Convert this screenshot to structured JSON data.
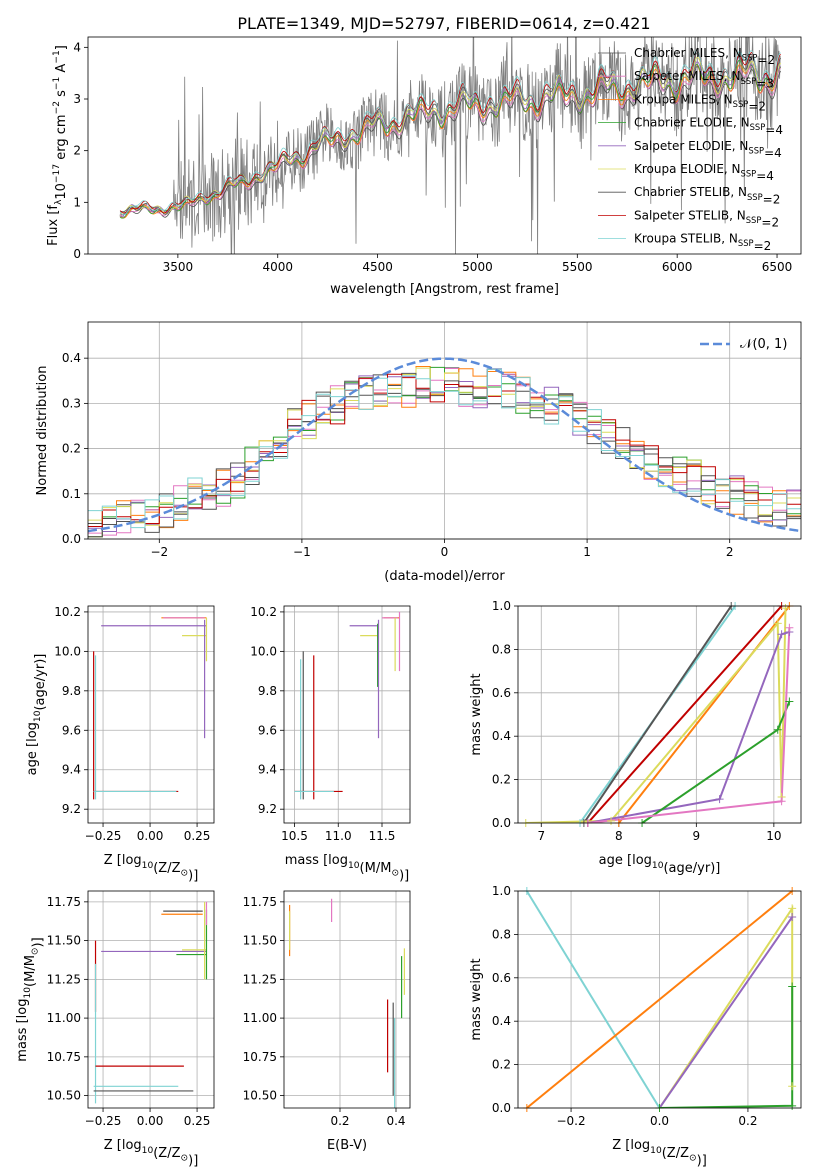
{
  "figure_title": "PLATE=1349, MJD=52797, FIBERID=0614, z=0.421",
  "series_colors": {
    "Chabrier MILES": "#4f4f4f",
    "Salpeter MILES": "#e377c2",
    "Kroupa MILES": "#ff7f0e",
    "Chabrier ELODIE": "#2ca02c",
    "Salpeter ELODIE": "#9467bd",
    "Kroupa ELODIE": "#dbdb5c",
    "Chabrier STELIB": "#555555",
    "Salpeter STELIB": "#c00000",
    "Kroupa STELIB": "#7fd3d3"
  },
  "chart_data": [
    {
      "type": "line",
      "id": "spectrum",
      "xlabel": "wavelength [Angstrom, rest frame]",
      "ylabel_main": "Flux [f",
      "ylabel_sub": "λ",
      "ylabel_rest": "10",
      "ylabel_exp": "−17",
      "ylabel_tail": " erg cm",
      "ylabel_exp2": "−2",
      "ylabel_tail2": " s",
      "ylabel_exp3": "−1",
      "ylabel_tail3": " A",
      "ylabel_exp4": "−1",
      "ylabel_end": "]",
      "xlim": [
        3050,
        6620
      ],
      "ylim": [
        0,
        4.2
      ],
      "xticks": [
        "3500",
        "4000",
        "4500",
        "5000",
        "5500",
        "6000",
        "6500"
      ],
      "xtick_values": [
        3500,
        4000,
        4500,
        5000,
        5500,
        6000,
        6500
      ],
      "yticks": [
        "0",
        "1",
        "2",
        "3",
        "4"
      ],
      "ytick_values": [
        0,
        1,
        2,
        3,
        4
      ],
      "data_start": 3210,
      "data_end": 6520,
      "model_anchor_x": [
        3210,
        3260,
        3500,
        3600,
        3800,
        4000,
        4200,
        4500,
        4800,
        5000,
        5500,
        6000,
        6500
      ],
      "model_anchor_y": [
        0.8,
        0.85,
        0.9,
        1.05,
        1.35,
        1.7,
        2.1,
        2.5,
        2.8,
        2.9,
        3.1,
        3.4,
        3.5
      ],
      "legend": [
        {
          "label": "Chabrier MILES, N",
          "sub": "SSP",
          "tail": "=2"
        },
        {
          "label": "Salpeter MILES, N",
          "sub": "SSP",
          "tail": "=3"
        },
        {
          "label": "Kroupa MILES, N",
          "sub": "SSP",
          "tail": "=2"
        },
        {
          "label": "Chabrier ELODIE, N",
          "sub": "SSP",
          "tail": "=4"
        },
        {
          "label": "Salpeter ELODIE, N",
          "sub": "SSP",
          "tail": "=4"
        },
        {
          "label": "Kroupa ELODIE, N",
          "sub": "SSP",
          "tail": "=4"
        },
        {
          "label": "Chabrier STELIB, N",
          "sub": "SSP",
          "tail": "=2"
        },
        {
          "label": "Salpeter STELIB, N",
          "sub": "SSP",
          "tail": "=2"
        },
        {
          "label": "Kroupa STELIB, N",
          "sub": "SSP",
          "tail": "=2"
        }
      ]
    },
    {
      "type": "step",
      "id": "residuals",
      "xlabel": "(data-model)/error",
      "ylabel": "Normed distribution",
      "xlim": [
        -2.5,
        2.5
      ],
      "ylim": [
        0,
        0.48
      ],
      "xticks": [
        "−2",
        "−1",
        "0",
        "1",
        "2"
      ],
      "xtick_values": [
        -2,
        -1,
        0,
        1,
        2
      ],
      "yticks": [
        "0.0",
        "0.1",
        "0.2",
        "0.3",
        "0.4"
      ],
      "ytick_values": [
        0,
        0.1,
        0.2,
        0.3,
        0.4
      ],
      "legend_label": "𝒩(0, 1)",
      "gaussian": {
        "mean": 0,
        "sigma": 1,
        "color": "#5b8bd9"
      },
      "bin_width": 0.1,
      "hist_envelope_x": [
        -2.5,
        -2.0,
        -1.5,
        -1.0,
        -0.5,
        0.0,
        0.5,
        1.0,
        1.5,
        2.0,
        2.5
      ],
      "hist_envelope_y": [
        0.03,
        0.06,
        0.12,
        0.26,
        0.33,
        0.34,
        0.33,
        0.26,
        0.16,
        0.1,
        0.06
      ]
    },
    {
      "type": "errorbar",
      "id": "age_vs_Z",
      "xlabel": "Z [log",
      "xlabel_sub": "10",
      "xlabel_tail": "(Z/Z",
      "xlabel_sub2": "⊙",
      "xlabel_end": ")]",
      "ylabel": "age  [log",
      "ylabel_sub": "10",
      "ylabel_tail": "(age/yr)]",
      "xlim": [
        -0.33,
        0.34
      ],
      "ylim": [
        9.13,
        10.23
      ],
      "xticks": [
        "−0.25",
        "0.00",
        "0.25"
      ],
      "xtick_values": [
        -0.25,
        0,
        0.25
      ],
      "yticks": [
        "9.2",
        "9.4",
        "9.6",
        "9.8",
        "10.0",
        "10.2"
      ],
      "ytick_values": [
        9.2,
        9.4,
        9.6,
        9.8,
        10.0,
        10.2
      ]
    },
    {
      "type": "errorbar",
      "id": "age_vs_mass",
      "xlabel": "mass [log",
      "xlabel_sub": "10",
      "xlabel_tail": "(M/M",
      "xlabel_sub2": "⊙",
      "xlabel_end": ")]",
      "xlim": [
        10.38,
        11.82
      ],
      "ylim": [
        9.13,
        10.23
      ],
      "xticks": [
        "10.5",
        "11.0",
        "11.5"
      ],
      "xtick_values": [
        10.5,
        11.0,
        11.5
      ],
      "yticks": [
        "9.2",
        "9.4",
        "9.6",
        "9.8",
        "10.0",
        "10.2"
      ],
      "ytick_values": [
        9.2,
        9.4,
        9.6,
        9.8,
        10.0,
        10.2
      ]
    },
    {
      "type": "line",
      "id": "massweight_vs_age",
      "xlabel": "age  [log",
      "xlabel_sub": "10",
      "xlabel_tail": "(age/yr)]",
      "ylabel": "mass weight",
      "xlim": [
        6.7,
        10.35
      ],
      "ylim": [
        0,
        1
      ],
      "xticks": [
        "7",
        "8",
        "9",
        "10"
      ],
      "xtick_values": [
        7,
        8,
        9,
        10
      ],
      "yticks": [
        "0.0",
        "0.2",
        "0.4",
        "0.6",
        "0.8",
        "1.0"
      ],
      "ytick_values": [
        0,
        0.2,
        0.4,
        0.6,
        0.8,
        1.0
      ],
      "series": [
        {
          "color": "Kroupa STELIB",
          "x": [
            7.5,
            9.5
          ],
          "y": [
            0.0,
            1.0
          ]
        },
        {
          "color": "Chabrier STELIB",
          "x": [
            7.55,
            9.45
          ],
          "y": [
            0.0,
            1.0
          ]
        },
        {
          "color": "Salpeter STELIB",
          "x": [
            7.6,
            10.1
          ],
          "y": [
            0.0,
            1.0
          ]
        },
        {
          "color": "Kroupa MILES",
          "x": [
            8.0,
            10.2
          ],
          "y": [
            0.0,
            1.0
          ]
        },
        {
          "color": "Kroupa ELODIE",
          "x": [
            6.8,
            7.9,
            10.05,
            10.1,
            10.15
          ],
          "y": [
            0.0,
            0.01,
            0.92,
            0.12,
            0.99
          ]
        },
        {
          "color": "Salpeter ELODIE",
          "x": [
            7.6,
            9.3,
            10.1,
            10.2
          ],
          "y": [
            0.0,
            0.11,
            0.87,
            0.88
          ]
        },
        {
          "color": "Chabrier ELODIE",
          "x": [
            8.3,
            10.05,
            10.2
          ],
          "y": [
            0.0,
            0.43,
            0.56
          ]
        },
        {
          "color": "Salpeter MILES",
          "x": [
            7.6,
            10.1,
            10.2
          ],
          "y": [
            0.0,
            0.1,
            0.9
          ]
        }
      ]
    },
    {
      "type": "errorbar",
      "id": "mass_vs_Z",
      "ylabel": "mass [log",
      "ylabel_sub": "10",
      "ylabel_tail": "(M/M",
      "ylabel_sub2": "⊙",
      "ylabel_end": ")]",
      "xlim": [
        -0.33,
        0.34
      ],
      "ylim": [
        10.42,
        11.82
      ],
      "xticks": [
        "−0.25",
        "0.00",
        "0.25"
      ],
      "xtick_values": [
        -0.25,
        0,
        0.25
      ],
      "yticks": [
        "10.50",
        "10.75",
        "11.00",
        "11.25",
        "11.50",
        "11.75"
      ],
      "ytick_values": [
        10.5,
        10.75,
        11.0,
        11.25,
        11.5,
        11.75
      ]
    },
    {
      "type": "errorbar",
      "id": "mass_vs_EBV",
      "xlabel": "E(B-V)",
      "xlim": [
        0.0,
        0.45
      ],
      "ylim": [
        10.42,
        11.82
      ],
      "xticks": [
        "0.2",
        "0.4"
      ],
      "xtick_values": [
        0.2,
        0.4
      ],
      "yticks": [
        "10.50",
        "10.75",
        "11.00",
        "11.25",
        "11.50",
        "11.75"
      ],
      "ytick_values": [
        10.5,
        10.75,
        11.0,
        11.25,
        11.5,
        11.75
      ]
    },
    {
      "type": "line",
      "id": "massweight_vs_Z",
      "ylabel": "mass weight",
      "xlim": [
        -0.32,
        0.32
      ],
      "ylim": [
        0,
        1
      ],
      "xticks": [
        "−0.2",
        "0.0",
        "0.2"
      ],
      "xtick_values": [
        -0.2,
        0,
        0.2
      ],
      "yticks": [
        "0.0",
        "0.2",
        "0.4",
        "0.6",
        "0.8",
        "1.0"
      ],
      "ytick_values": [
        0,
        0.2,
        0.4,
        0.6,
        0.8,
        1.0
      ],
      "series": [
        {
          "color": "Kroupa STELIB",
          "x": [
            -0.3,
            0.0
          ],
          "y": [
            1.0,
            0.0
          ]
        },
        {
          "color": "Kroupa MILES",
          "x": [
            -0.3,
            0.3
          ],
          "y": [
            0.0,
            1.0
          ]
        },
        {
          "color": "Kroupa ELODIE",
          "x": [
            0.0,
            0.3,
            0.3
          ],
          "y": [
            0.0,
            0.92,
            0.1
          ]
        },
        {
          "color": "Salpeter ELODIE",
          "x": [
            0.0,
            0.3
          ],
          "y": [
            0.0,
            0.88
          ]
        },
        {
          "color": "Chabrier ELODIE",
          "x": [
            0.0,
            0.3,
            0.3
          ],
          "y": [
            0.0,
            0.01,
            0.56
          ]
        }
      ]
    }
  ]
}
